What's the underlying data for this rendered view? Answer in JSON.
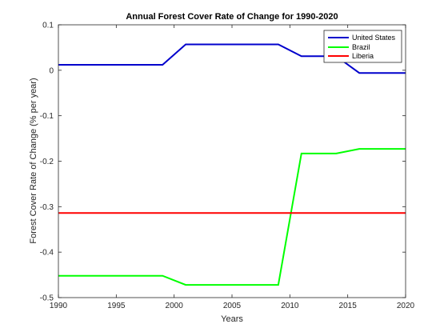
{
  "chart_data": {
    "type": "line",
    "title": "Annual Forest Cover Rate of Change for 1990-2020",
    "xlabel": "Years",
    "ylabel": "Forest Cover Rate of Change (% per year)",
    "xlim": [
      1990,
      2020
    ],
    "ylim": [
      -0.5,
      0.1
    ],
    "xticks": [
      1990,
      1995,
      2000,
      2005,
      2010,
      2015,
      2020
    ],
    "yticks": [
      -0.5,
      -0.4,
      -0.3,
      -0.2,
      -0.1,
      0,
      0.1
    ],
    "ytick_labels": [
      "-0.5",
      "-0.4",
      "-0.3",
      "-0.2",
      "-0.1",
      "0",
      "0.1"
    ],
    "grid": false,
    "legend_position": "top-right",
    "series": [
      {
        "name": "United States",
        "color": "#0000cc",
        "x": [
          1990,
          1999,
          2001,
          2009,
          2011,
          2014,
          2016,
          2020
        ],
        "y": [
          0.012,
          0.012,
          0.057,
          0.057,
          0.031,
          0.031,
          -0.006,
          -0.006
        ]
      },
      {
        "name": "Brazil",
        "color": "#00ff00",
        "x": [
          1990,
          1999,
          2001,
          2009,
          2011,
          2014,
          2016,
          2020
        ],
        "y": [
          -0.452,
          -0.452,
          -0.472,
          -0.472,
          -0.183,
          -0.183,
          -0.173,
          -0.173
        ]
      },
      {
        "name": "Liberia",
        "color": "#ff0000",
        "x": [
          1990,
          2020
        ],
        "y": [
          -0.314,
          -0.314
        ]
      }
    ]
  }
}
